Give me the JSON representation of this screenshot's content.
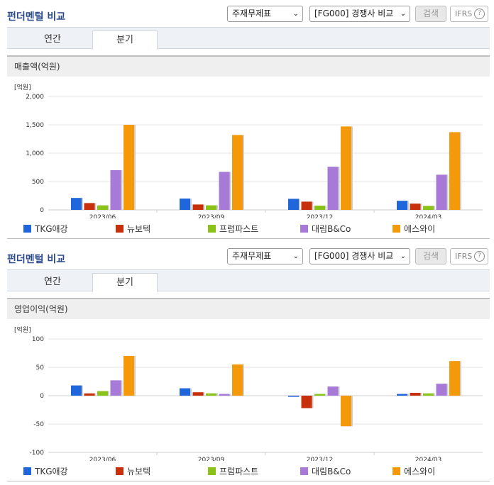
{
  "header": {
    "title": "펀더멘털 비교",
    "select1": "주재무제표",
    "select2": "[FG000] 경쟁사 비교",
    "search_label": "검색",
    "ifrs_label": "IFRS",
    "help": "?"
  },
  "tabs": [
    {
      "label": "연간",
      "active": false
    },
    {
      "label": "분기",
      "active": true
    }
  ],
  "colors": {
    "series": [
      "#1f66dd",
      "#c8300b",
      "#8bc21a",
      "#a77ad8",
      "#f49a0a"
    ]
  },
  "chart_data": [
    {
      "type": "bar",
      "title": "매출액(억원)",
      "unit": "[억원]",
      "categories": [
        "2023/06",
        "2023/09",
        "2023/12",
        "2024/03"
      ],
      "ylim": [
        0,
        2000
      ],
      "yticks": [
        "0",
        "500",
        "1,000",
        "1,500",
        "2,000"
      ],
      "series": [
        {
          "name": "TKG애강",
          "values": [
            210,
            200,
            195,
            160
          ]
        },
        {
          "name": "뉴보텍",
          "values": [
            120,
            95,
            145,
            110
          ]
        },
        {
          "name": "프럼파스트",
          "values": [
            80,
            80,
            75,
            70
          ]
        },
        {
          "name": "대림B&Co",
          "values": [
            700,
            670,
            760,
            620
          ]
        },
        {
          "name": "에스와이",
          "values": [
            1500,
            1320,
            1470,
            1370
          ]
        }
      ]
    },
    {
      "type": "bar",
      "title": "영업이익(억원)",
      "unit": "[억원]",
      "categories": [
        "2023/06",
        "2023/09",
        "2023/12",
        "2024/03"
      ],
      "ylim": [
        -100,
        100
      ],
      "yticks": [
        "-100",
        "-50",
        "0",
        "50",
        "100"
      ],
      "series": [
        {
          "name": "TKG애강",
          "values": [
            18,
            13,
            -2,
            3
          ]
        },
        {
          "name": "뉴보텍",
          "values": [
            4,
            6,
            -22,
            5
          ]
        },
        {
          "name": "프럼파스트",
          "values": [
            8,
            4,
            3,
            4
          ]
        },
        {
          "name": "대림B&Co",
          "values": [
            27,
            3,
            16,
            21
          ]
        },
        {
          "name": "에스와이",
          "values": [
            70,
            55,
            -54,
            61
          ]
        }
      ]
    }
  ]
}
